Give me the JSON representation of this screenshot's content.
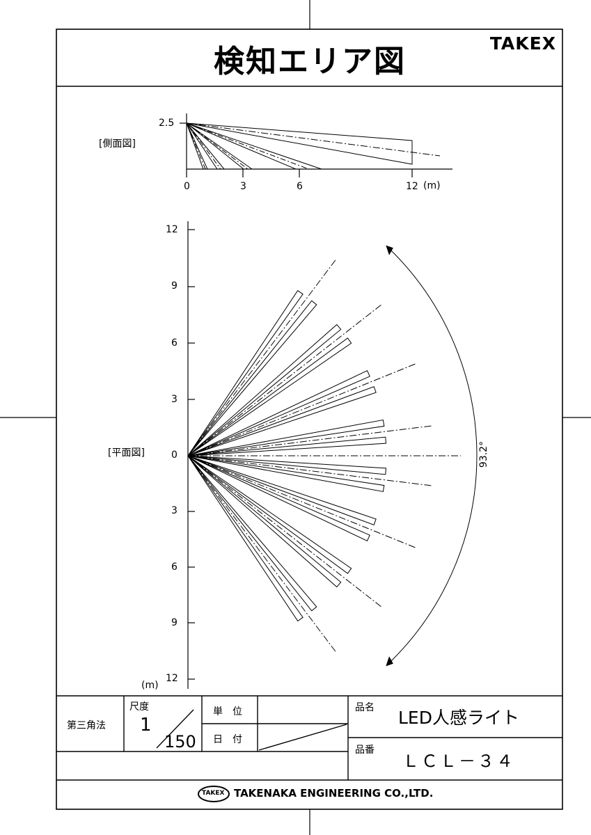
{
  "header": {
    "title": "検知エリア図",
    "brand": "TAKEX"
  },
  "side_view": {
    "label": "[側面図]",
    "y_tick": "2.5",
    "x_ticks": [
      "0",
      "3",
      "6",
      "12"
    ],
    "unit": "(m)"
  },
  "plan_view": {
    "label": "[平面図]",
    "y_ticks": [
      "12",
      "9",
      "6",
      "3",
      "0",
      "3",
      "6",
      "9",
      "12"
    ],
    "unit": "(m)",
    "angle_label": "93.2°"
  },
  "title_block": {
    "projection": "第三角法",
    "scale_label": "尺度",
    "scale_num": "1",
    "scale_den": "150",
    "unit_label": "単　位",
    "date_label": "日　付",
    "product_name_label": "品名",
    "product_name": "LED人感ライト",
    "product_code_label": "品番",
    "product_code": "ＬＣＬ－３４"
  },
  "footer": {
    "logo_mark": "TAKEX",
    "company": "TAKENAKA ENGINEERING CO.,LTD."
  }
}
